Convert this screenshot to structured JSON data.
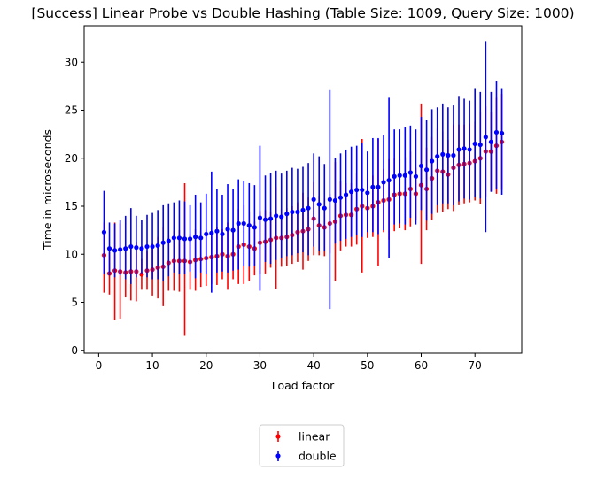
{
  "chart_data": {
    "type": "scatter",
    "title": "[Success] Linear Probe vs Double Hashing (Table Size: 1009, Query Size: 1000)",
    "xlabel": "Load factor",
    "ylabel": "Time in microseconds",
    "xlim": [
      -2.7,
      78.7
    ],
    "ylim": [
      -0.3,
      33.8
    ],
    "xticks": [
      0,
      10,
      20,
      30,
      40,
      50,
      60,
      70
    ],
    "yticks": [
      0,
      5,
      10,
      15,
      20,
      25,
      30
    ],
    "grid": false,
    "legend_position": "below-center",
    "x": [
      1,
      2,
      3,
      4,
      5,
      6,
      7,
      8,
      9,
      10,
      11,
      12,
      13,
      14,
      15,
      16,
      17,
      18,
      19,
      20,
      21,
      22,
      23,
      24,
      25,
      26,
      27,
      28,
      29,
      30,
      31,
      32,
      33,
      34,
      35,
      36,
      37,
      38,
      39,
      40,
      41,
      42,
      43,
      44,
      45,
      46,
      47,
      48,
      49,
      50,
      51,
      52,
      53,
      54,
      55,
      56,
      57,
      58,
      59,
      60,
      61,
      62,
      63,
      64,
      65,
      66,
      67,
      68,
      69,
      70,
      71,
      72,
      73,
      74,
      75
    ],
    "series": [
      {
        "name": "linear",
        "color": "#ff0000",
        "marker": "circle",
        "values": [
          9.9,
          8.0,
          8.3,
          8.2,
          8.1,
          8.2,
          8.2,
          7.9,
          8.3,
          8.4,
          8.6,
          8.7,
          9.1,
          9.3,
          9.3,
          9.3,
          9.2,
          9.4,
          9.5,
          9.6,
          9.7,
          9.8,
          10.0,
          9.8,
          10.0,
          10.8,
          11.0,
          10.8,
          10.6,
          11.2,
          11.3,
          11.5,
          11.7,
          11.7,
          11.8,
          12.0,
          12.3,
          12.4,
          12.6,
          13.7,
          13.0,
          12.8,
          13.2,
          13.4,
          14.0,
          14.1,
          14.1,
          14.7,
          15.0,
          14.8,
          15.0,
          15.4,
          15.6,
          15.7,
          16.2,
          16.3,
          16.3,
          16.8,
          16.3,
          17.2,
          16.8,
          17.9,
          18.7,
          18.6,
          18.3,
          19.0,
          19.3,
          19.4,
          19.5,
          19.7,
          20.0,
          20.7,
          20.7,
          21.3,
          21.7
        ],
        "lower": [
          6.0,
          5.8,
          3.2,
          3.3,
          5.5,
          5.2,
          5.1,
          6.3,
          6.3,
          5.7,
          5.4,
          4.6,
          6.2,
          6.2,
          6.1,
          1.5,
          6.3,
          6.2,
          6.6,
          6.7,
          6.9,
          6.8,
          7.4,
          6.3,
          7.4,
          6.9,
          6.9,
          7.2,
          7.8,
          7.9,
          8.0,
          8.6,
          6.4,
          8.7,
          8.8,
          9.0,
          9.2,
          8.4,
          9.3,
          9.9,
          9.9,
          9.8,
          10.1,
          7.2,
          10.4,
          10.8,
          10.8,
          11.0,
          8.1,
          11.7,
          11.8,
          8.8,
          12.3,
          11.5,
          12.4,
          12.7,
          12.5,
          12.9,
          13.6,
          9.0,
          12.5,
          13.6,
          14.3,
          14.4,
          14.7,
          14.5,
          15.1,
          15.3,
          15.4,
          15.6,
          15.2,
          16.0,
          16.6,
          16.3,
          16.7
        ],
        "upper": [
          13.3,
          10.2,
          13.3,
          13.2,
          10.8,
          11.1,
          11.3,
          9.5,
          10.3,
          11.1,
          11.8,
          12.8,
          12.0,
          12.4,
          12.5,
          17.4,
          12.1,
          12.6,
          12.4,
          12.5,
          12.5,
          12.8,
          12.6,
          13.3,
          12.6,
          14.7,
          15.1,
          14.4,
          13.4,
          14.5,
          14.6,
          14.4,
          17.0,
          14.7,
          14.8,
          15.0,
          15.4,
          16.4,
          15.9,
          17.5,
          16.1,
          15.8,
          16.3,
          19.6,
          17.6,
          17.4,
          17.4,
          18.4,
          22.0,
          17.9,
          18.2,
          22.0,
          18.9,
          19.9,
          20.0,
          19.9,
          20.1,
          20.7,
          19.0,
          25.7,
          21.1,
          22.2,
          23.1,
          22.8,
          21.9,
          23.5,
          23.5,
          23.5,
          23.6,
          23.8,
          24.8,
          25.4,
          24.8,
          26.3,
          26.7
        ]
      },
      {
        "name": "double",
        "color": "#0000ff",
        "marker": "circle",
        "values": [
          12.3,
          10.6,
          10.4,
          10.5,
          10.6,
          10.8,
          10.7,
          10.6,
          10.8,
          10.8,
          10.9,
          11.2,
          11.4,
          11.7,
          11.7,
          11.6,
          11.6,
          11.8,
          11.7,
          12.1,
          12.2,
          12.4,
          12.1,
          12.6,
          12.5,
          13.2,
          13.2,
          13.0,
          12.8,
          13.8,
          13.6,
          13.7,
          14.0,
          13.9,
          14.2,
          14.4,
          14.4,
          14.6,
          14.8,
          15.7,
          15.2,
          14.8,
          15.7,
          15.6,
          15.9,
          16.2,
          16.5,
          16.7,
          16.7,
          16.4,
          17.0,
          17.0,
          17.5,
          17.7,
          18.1,
          18.2,
          18.2,
          18.5,
          18.1,
          19.2,
          18.8,
          19.7,
          20.2,
          20.4,
          20.3,
          20.3,
          20.9,
          21.0,
          20.9,
          21.5,
          21.4,
          22.2,
          21.7,
          22.7,
          22.6
        ],
        "lower": [
          8.0,
          7.8,
          7.6,
          7.8,
          7.4,
          6.9,
          7.6,
          7.9,
          7.6,
          7.4,
          7.4,
          7.2,
          7.7,
          8.1,
          7.9,
          7.9,
          8.2,
          7.5,
          8.1,
          8.0,
          6.0,
          8.1,
          8.2,
          8.1,
          8.3,
          8.4,
          8.8,
          8.7,
          8.8,
          6.2,
          9.2,
          9.0,
          9.4,
          9.6,
          9.8,
          9.9,
          10.1,
          10.2,
          9.9,
          10.8,
          10.3,
          10.3,
          4.3,
          11.1,
          11.4,
          11.6,
          11.8,
          12.0,
          11.8,
          12.3,
          12.3,
          12.1,
          12.5,
          9.6,
          13.1,
          13.2,
          13.1,
          13.8,
          13.1,
          14.6,
          13.5,
          14.2,
          15.1,
          15.3,
          15.3,
          15.1,
          15.5,
          15.8,
          15.7,
          16.0,
          15.8,
          12.3,
          16.5,
          16.8,
          16.2
        ],
        "upper": [
          16.6,
          13.3,
          13.2,
          13.6,
          14.0,
          14.8,
          14.0,
          13.6,
          14.1,
          14.3,
          14.6,
          15.1,
          15.3,
          15.4,
          15.6,
          15.5,
          15.1,
          16.2,
          15.4,
          16.3,
          18.6,
          16.8,
          16.2,
          17.3,
          16.8,
          17.8,
          17.6,
          17.4,
          17.2,
          21.3,
          18.2,
          18.5,
          18.7,
          18.4,
          18.7,
          19.0,
          18.9,
          19.1,
          19.5,
          20.5,
          20.2,
          19.4,
          27.1,
          20.0,
          20.5,
          20.9,
          21.2,
          21.3,
          21.6,
          20.7,
          22.1,
          22.1,
          22.4,
          26.3,
          23.0,
          23.0,
          23.2,
          23.4,
          23.0,
          24.3,
          24.0,
          25.1,
          25.3,
          25.7,
          25.3,
          25.5,
          26.4,
          26.2,
          26.0,
          27.3,
          26.9,
          32.2,
          26.9,
          28.0,
          27.3
        ]
      }
    ]
  }
}
